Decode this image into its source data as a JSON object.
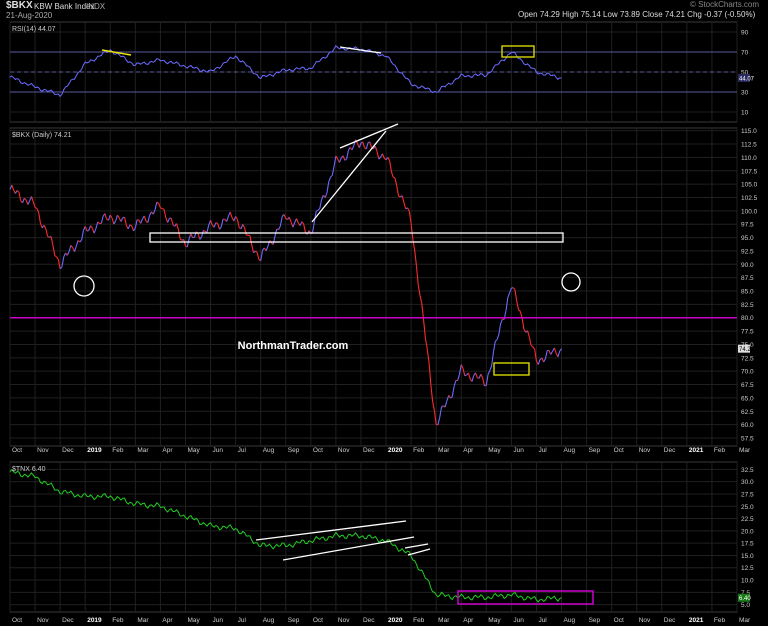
{
  "header": {
    "symbol": "$BKX",
    "name": "KBW Bank Index",
    "exchange": "INDX",
    "date": "21-Aug-2020",
    "watermark": "© StockCharts.com",
    "open_label": "Open",
    "open": "74.29",
    "high_label": "High",
    "high": "75.14",
    "low_label": "Low",
    "low": "73.89",
    "close_label": "Close",
    "close": "74.21",
    "chg_label": "Chg",
    "chg": "-0.37 (-0.50%)"
  },
  "overlay_text": "NorthmanTrader.com",
  "colors": {
    "rsi_line": "#6a6aff",
    "price_up": "#6a6aff",
    "price_down": "#ff2a2a",
    "tnx_line": "#22cc22",
    "magenta": "#cc00cc",
    "yellow": "#e6e600",
    "white": "#ffffff",
    "grid": "#202020",
    "axis_text": "#cccccc"
  },
  "chart_data": [
    {
      "type": "line",
      "title": "RSI(14) 44.07",
      "series": [
        {
          "name": "RSI(14)"
        }
      ],
      "yticks": [
        "10",
        "30",
        "50",
        "70",
        "90"
      ],
      "ylim": [
        0,
        100
      ],
      "reference_lines": [
        30,
        50,
        70
      ],
      "last_value_label": "44.07",
      "x": [
        "2018-10",
        "2018-11",
        "2018-12",
        "2019-01",
        "2019-02",
        "2019-03",
        "2019-04",
        "2019-05",
        "2019-06",
        "2019-07",
        "2019-08",
        "2019-09",
        "2019-10",
        "2019-11",
        "2019-12",
        "2020-01",
        "2020-02",
        "2020-03",
        "2020-04",
        "2020-05",
        "2020-06",
        "2020-07",
        "2020-08"
      ],
      "values": [
        45,
        35,
        27,
        58,
        72,
        57,
        62,
        56,
        50,
        66,
        44,
        52,
        54,
        74,
        73,
        66,
        38,
        30,
        46,
        47,
        70,
        50,
        44
      ]
    },
    {
      "type": "line",
      "title": "$BKX (Daily) 74.21",
      "series": [
        {
          "name": "$BKX (Daily)"
        }
      ],
      "yticks": [
        "57.5",
        "60.0",
        "62.5",
        "65.0",
        "67.5",
        "70.0",
        "72.5",
        "75.0",
        "77.5",
        "80.0",
        "82.5",
        "85.0",
        "87.5",
        "90.0",
        "92.5",
        "95.0",
        "97.5",
        "100.0",
        "102.5",
        "105.0",
        "107.5",
        "110.0",
        "112.5",
        "115.0"
      ],
      "ylim": [
        56,
        115.5
      ],
      "last_value_label": "74.21",
      "horizontal_line": 80,
      "x": [
        "2018-10",
        "2018-11",
        "2018-12",
        "2019-01",
        "2019-02",
        "2019-03",
        "2019-04",
        "2019-05",
        "2019-06",
        "2019-07",
        "2019-08",
        "2019-09",
        "2019-10",
        "2019-11",
        "2019-12",
        "2020-01",
        "2020-02",
        "2020-03",
        "2020-04",
        "2020-05",
        "2020-06",
        "2020-07",
        "2020-08"
      ],
      "values": [
        104,
        101,
        90,
        96,
        99,
        97,
        101,
        94,
        97,
        99,
        91,
        99,
        96,
        109,
        113,
        110,
        98,
        60,
        70,
        68,
        86,
        72,
        74.21
      ]
    },
    {
      "type": "line",
      "title": "$TNX 6.40",
      "series": [
        {
          "name": "$TNX"
        }
      ],
      "yticks": [
        "5.0",
        "7.5",
        "10.0",
        "12.5",
        "15.0",
        "17.5",
        "20.0",
        "22.5",
        "25.0",
        "27.5",
        "30.0",
        "32.5"
      ],
      "ylim": [
        3.5,
        34
      ],
      "last_value_label": "6.40",
      "x": [
        "2018-10",
        "2018-11",
        "2018-12",
        "2019-01",
        "2019-02",
        "2019-03",
        "2019-04",
        "2019-05",
        "2019-06",
        "2019-07",
        "2019-08",
        "2019-09",
        "2019-10",
        "2019-11",
        "2019-12",
        "2020-01",
        "2020-02",
        "2020-03",
        "2020-04",
        "2020-05",
        "2020-06",
        "2020-07",
        "2020-08"
      ],
      "values": [
        32,
        31,
        28,
        27,
        27,
        25.5,
        25,
        23,
        21,
        20.5,
        17,
        17,
        18,
        19,
        19,
        18,
        15,
        7,
        6.5,
        6.5,
        7,
        6,
        6.4
      ]
    }
  ],
  "xaxis_labels": [
    "Oct",
    "Nov",
    "Dec",
    "2019",
    "Feb",
    "Mar",
    "Apr",
    "May",
    "Jun",
    "Jul",
    "Aug",
    "Sep",
    "Oct",
    "Nov",
    "Dec",
    "2020",
    "Feb",
    "Mar",
    "Apr",
    "May",
    "Jun",
    "Jul",
    "Aug",
    "Sep",
    "Oct",
    "Nov",
    "Dec",
    "2021",
    "Feb",
    "Mar"
  ]
}
